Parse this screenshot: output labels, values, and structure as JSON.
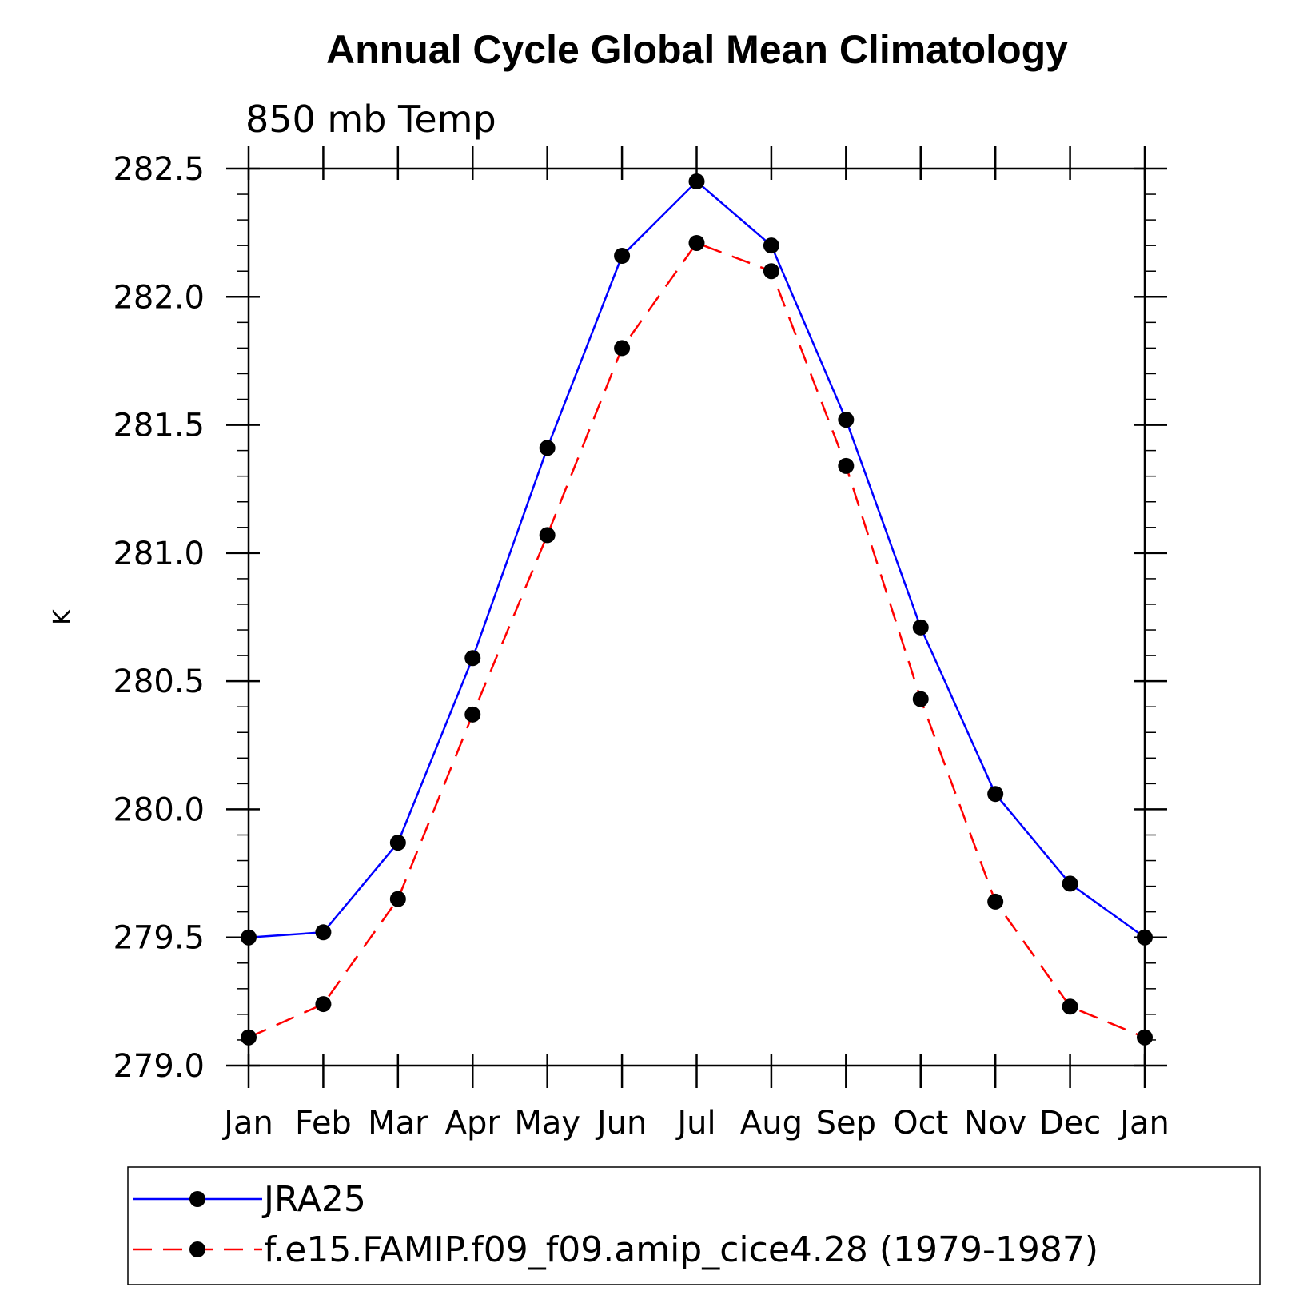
{
  "chart_data": {
    "type": "line",
    "title": "Annual Cycle Global Mean Climatology",
    "subtitle": "850 mb Temp",
    "ylabel": "K",
    "xlabel": "",
    "categories": [
      "Jan",
      "Feb",
      "Mar",
      "Apr",
      "May",
      "Jun",
      "Jul",
      "Aug",
      "Sep",
      "Oct",
      "Nov",
      "Dec",
      "Jan"
    ],
    "ylim": [
      279.0,
      282.5
    ],
    "yticks": [
      "279.0",
      "279.5",
      "280.0",
      "280.5",
      "281.0",
      "281.5",
      "282.0",
      "282.5"
    ],
    "grid": false,
    "legend_position": "bottom",
    "series": [
      {
        "name": "JRA25",
        "color": "#0000ff",
        "line_style": "solid",
        "marker": "filled-circle",
        "values": [
          279.5,
          279.52,
          279.87,
          280.59,
          281.41,
          282.16,
          282.45,
          282.2,
          281.52,
          280.71,
          280.06,
          279.71,
          279.5
        ]
      },
      {
        "name": "f.e15.FAMIP.f09_f09.amip_cice4.28 (1979-1987)",
        "color": "#ff0000",
        "line_style": "dashed",
        "marker": "filled-circle",
        "values": [
          279.11,
          279.24,
          279.65,
          280.37,
          281.07,
          281.8,
          282.21,
          282.1,
          281.34,
          280.43,
          279.64,
          279.23,
          279.11
        ]
      }
    ]
  }
}
